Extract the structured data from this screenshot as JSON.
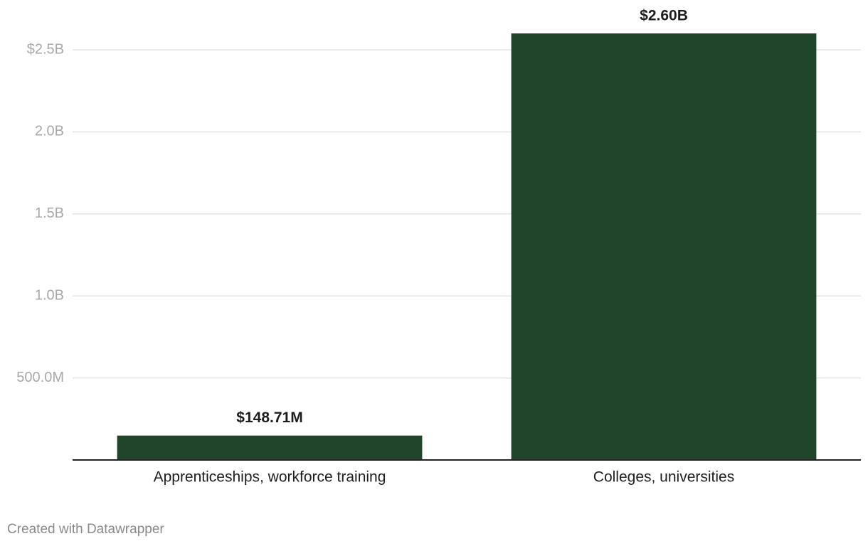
{
  "chart_data": {
    "type": "bar",
    "categories": [
      "Apprenticeships, workforce training",
      "Colleges, universities"
    ],
    "values": [
      148710000,
      2600000000
    ],
    "value_labels": [
      "$148.71M",
      "$2.60B"
    ],
    "color": "#21452a",
    "ylim": [
      0,
      2600000000
    ],
    "yticks": [
      {
        "value": 500000000,
        "label": "500.0M"
      },
      {
        "value": 1000000000,
        "label": "1.0B"
      },
      {
        "value": 1500000000,
        "label": "1.5B"
      },
      {
        "value": 2000000000,
        "label": "2.0B"
      },
      {
        "value": 2500000000,
        "label": "$2.5B"
      }
    ],
    "grid": true,
    "credit": "Created with Datawrapper"
  }
}
